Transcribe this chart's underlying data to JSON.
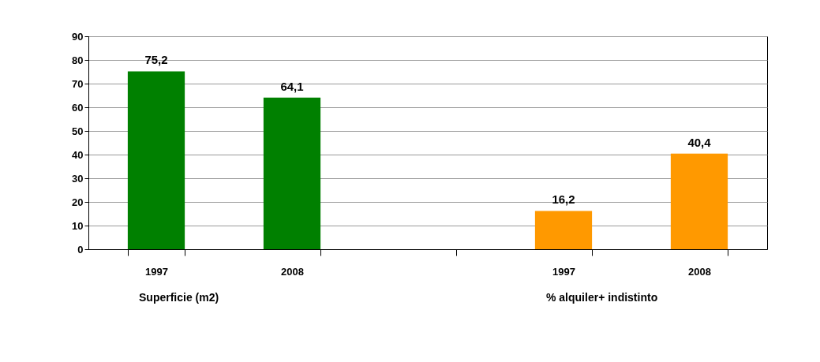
{
  "chart_data": {
    "type": "bar",
    "categories": [
      "1997",
      "2008",
      null,
      "1997",
      "2008"
    ],
    "values": [
      75.2,
      64.1,
      null,
      16.2,
      40.4
    ],
    "colors": [
      "#008000",
      "#008000",
      "#008000",
      "#ff9900",
      "#ff9900"
    ],
    "ylim": [
      0,
      90
    ],
    "yticks": [
      0,
      10,
      20,
      30,
      40,
      50,
      60,
      70,
      80,
      90
    ],
    "grid": "y",
    "value_labels": [
      "75,2",
      "64,1",
      null,
      "16,2",
      "40,4"
    ],
    "annotations": [
      "Superficie (m2)",
      "% alquiler+ indistinto"
    ]
  }
}
